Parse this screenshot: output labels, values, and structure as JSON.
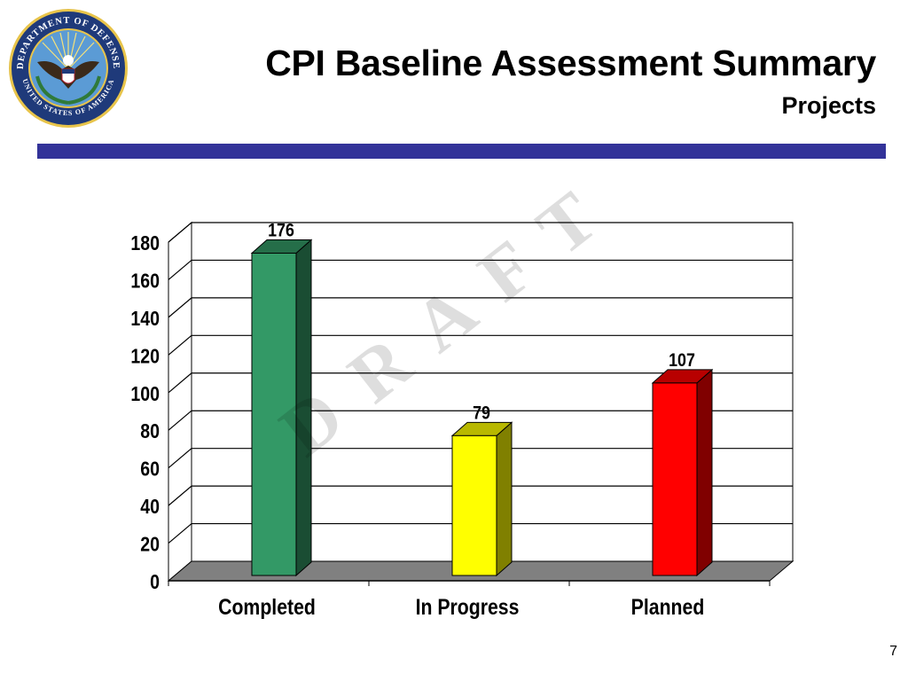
{
  "slide": {
    "title": "CPI Baseline Assessment Summary",
    "subtitle": "Projects",
    "page_number": "7",
    "watermark": "D R A F T",
    "rule_color": "#333399"
  },
  "seal": {
    "icon": "department-of-defense-seal-icon",
    "top_text": "DEPARTMENT OF DEFENSE",
    "bottom_text": "UNITED STATES OF AMERICA",
    "colors": {
      "ring": "#1f3a7a",
      "gold": "#e8c44a",
      "eagle": "#3b2a1a"
    }
  },
  "chart_data": {
    "type": "bar",
    "title": "",
    "xlabel": "",
    "ylabel": "",
    "categories": [
      "Completed",
      "In Progress",
      "Planned"
    ],
    "values": [
      176,
      79,
      107
    ],
    "data_labels": [
      "176",
      "79",
      "107"
    ],
    "colors": [
      "#339966",
      "#ffff00",
      "#ff0000"
    ],
    "ylim": [
      0,
      180
    ],
    "yticks": [
      0,
      20,
      40,
      60,
      80,
      100,
      120,
      140,
      160,
      180
    ],
    "grid": true,
    "legend": "none",
    "style": "3d",
    "floor_color": "#808080"
  }
}
